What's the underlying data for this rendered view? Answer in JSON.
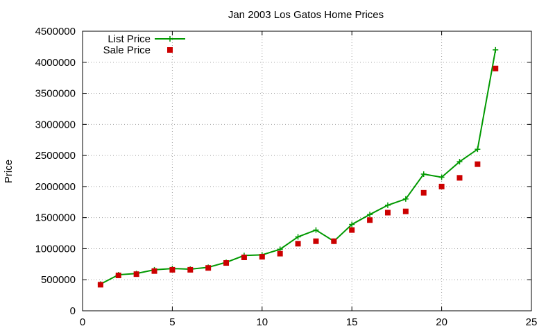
{
  "chart_data": {
    "type": "line",
    "title": "Jan 2003 Los Gatos Home Prices",
    "xlabel": "",
    "ylabel": "Price",
    "xlim": [
      0,
      25
    ],
    "ylim": [
      0,
      4500000
    ],
    "xticks": [
      0,
      5,
      10,
      15,
      20,
      25
    ],
    "yticks": [
      0,
      500000,
      1000000,
      1500000,
      2000000,
      2500000,
      3000000,
      3500000,
      4000000,
      4500000
    ],
    "grid": true,
    "legend_position": "top-left",
    "series": [
      {
        "name": "List Price",
        "style": "line-with-plus-markers",
        "color": "#009900",
        "x": [
          1,
          2,
          3,
          4,
          5,
          6,
          7,
          8,
          9,
          10,
          11,
          12,
          13,
          14,
          15,
          16,
          17,
          18,
          19,
          20,
          21,
          22,
          23
        ],
        "y": [
          430000,
          580000,
          600000,
          660000,
          680000,
          670000,
          700000,
          780000,
          890000,
          900000,
          990000,
          1190000,
          1300000,
          1120000,
          1390000,
          1550000,
          1700000,
          1800000,
          2200000,
          2150000,
          2400000,
          2600000,
          4200000
        ]
      },
      {
        "name": "Sale Price",
        "style": "square-markers",
        "color": "#cc0000",
        "x": [
          1,
          2,
          3,
          4,
          5,
          6,
          7,
          8,
          9,
          10,
          11,
          12,
          13,
          14,
          15,
          16,
          17,
          18,
          19,
          20,
          21,
          22,
          23
        ],
        "y": [
          420000,
          570000,
          590000,
          640000,
          660000,
          660000,
          690000,
          770000,
          860000,
          870000,
          920000,
          1080000,
          1120000,
          1120000,
          1300000,
          1460000,
          1580000,
          1600000,
          1900000,
          2000000,
          2140000,
          2360000,
          3900000
        ]
      }
    ]
  }
}
